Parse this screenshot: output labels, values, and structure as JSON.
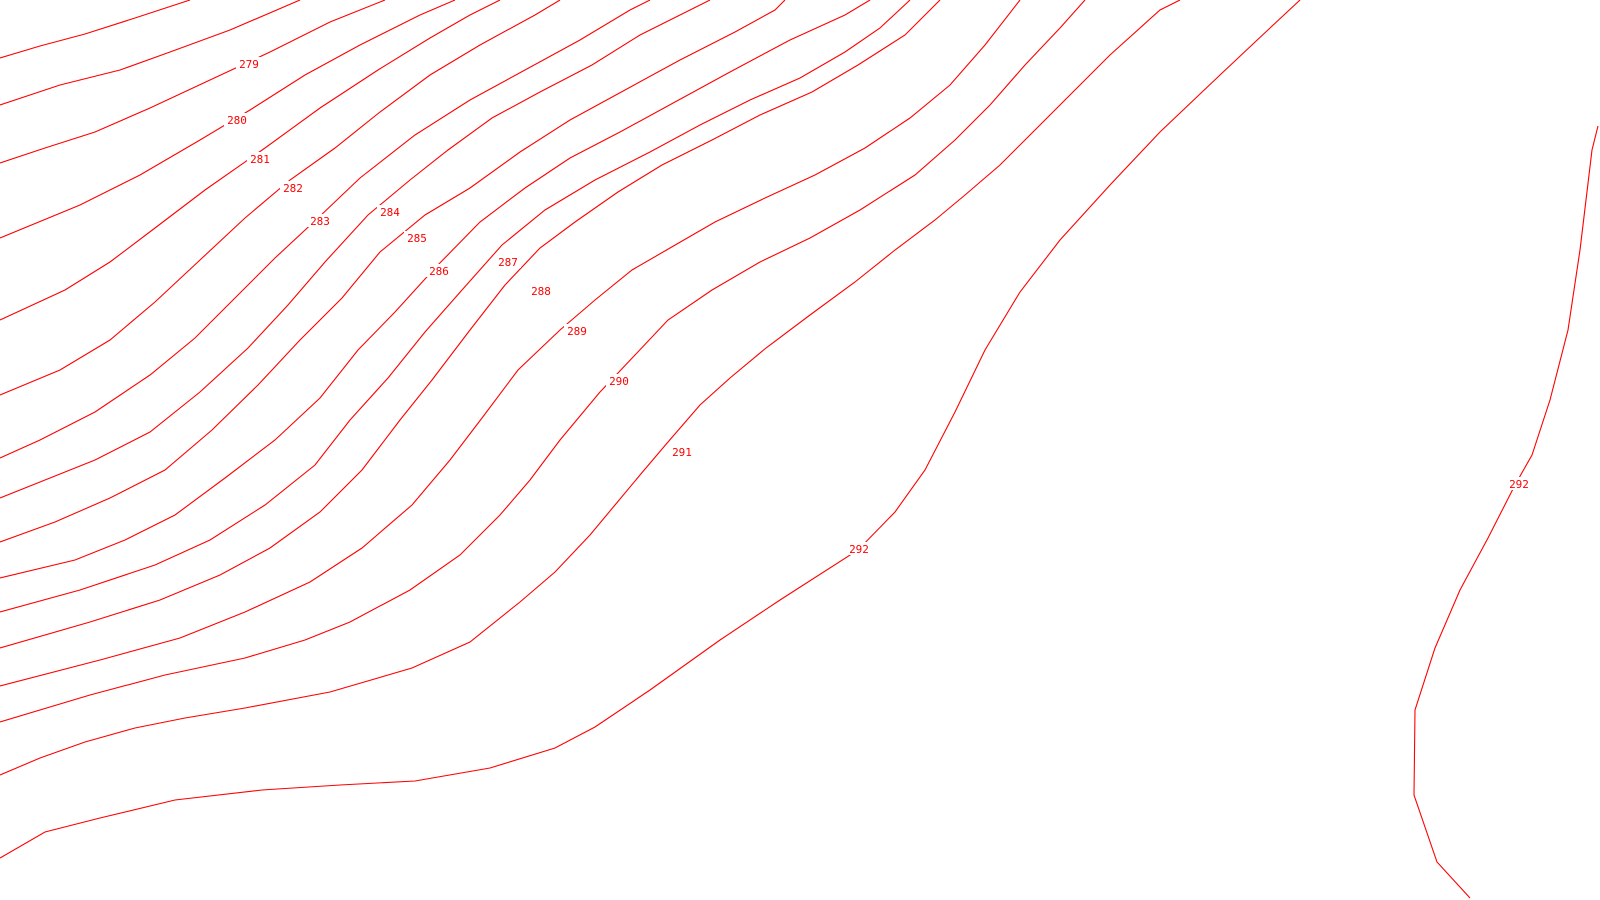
{
  "map": {
    "type": "contour-map",
    "line_color": "#ff0000",
    "background": "#ffffff",
    "contour_labels": [
      "279",
      "280",
      "281",
      "282",
      "283",
      "284",
      "285",
      "286",
      "287",
      "288",
      "289",
      "290",
      "291",
      "292",
      "292"
    ]
  }
}
